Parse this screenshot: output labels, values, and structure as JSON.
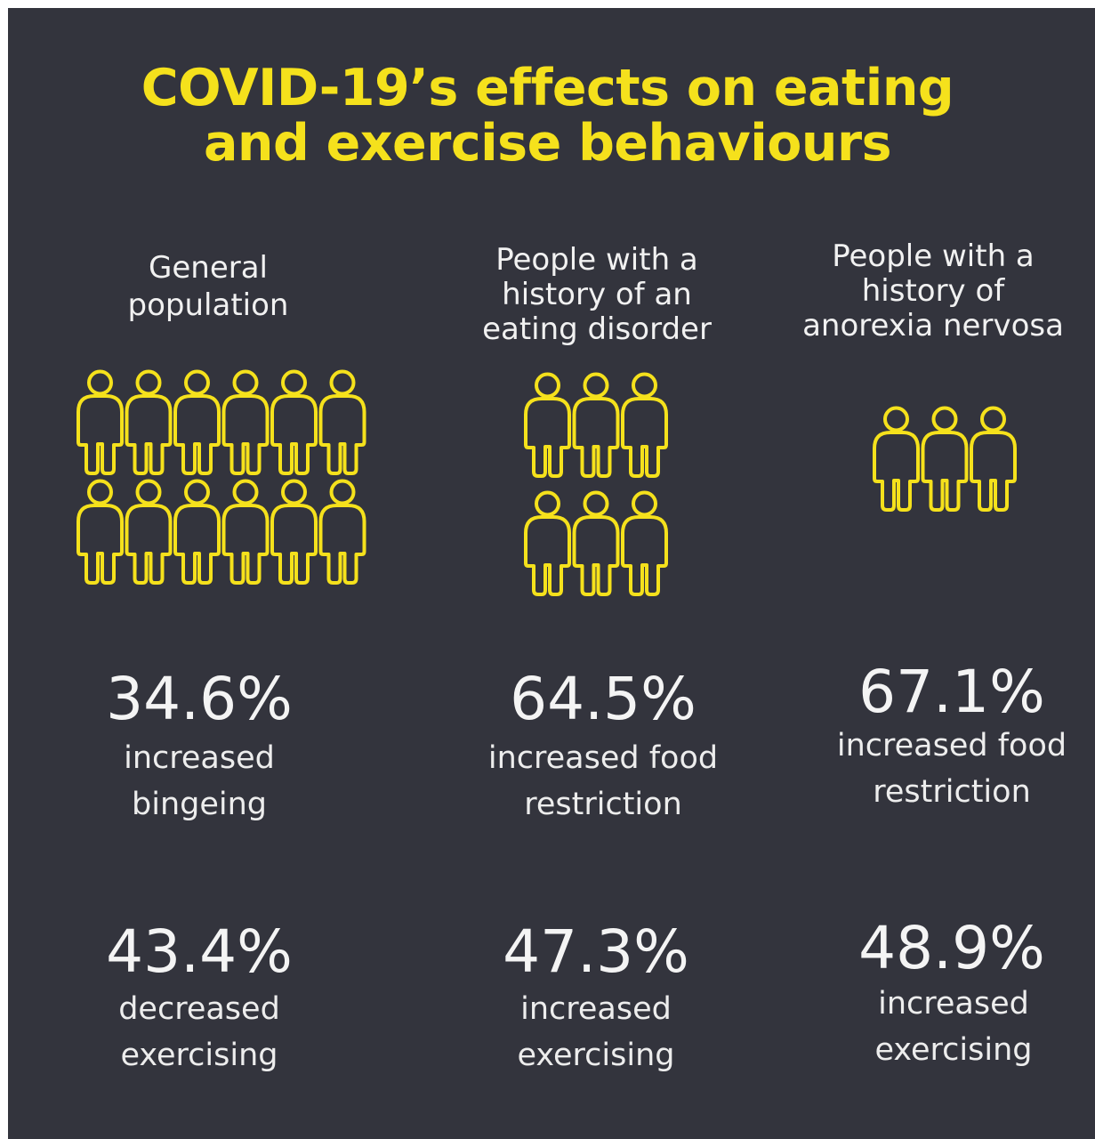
{
  "title": {
    "line1": "COVID-19’s effects on eating",
    "line2": "and exercise behaviours"
  },
  "colors": {
    "background": "#33343d",
    "accent": "#f5e11c",
    "text": "#f1f1f1"
  },
  "icon": "person-outline-icon",
  "groups": [
    {
      "label_lines": [
        "General",
        "population"
      ],
      "people_count": 12,
      "stats": [
        {
          "value": "34.6%",
          "desc_lines": [
            "increased",
            "bingeing"
          ]
        },
        {
          "value": "43.4%",
          "desc_lines": [
            "decreased",
            "exercising"
          ]
        }
      ]
    },
    {
      "label_lines": [
        "People with a",
        "history of an",
        "eating disorder"
      ],
      "people_count": 6,
      "stats": [
        {
          "value": "64.5%",
          "desc_lines": [
            "increased food",
            "restriction"
          ]
        },
        {
          "value": "47.3%",
          "desc_lines": [
            "increased",
            "exercising"
          ]
        }
      ]
    },
    {
      "label_lines": [
        "People with a",
        "history of",
        "anorexia nervosa"
      ],
      "people_count": 3,
      "stats": [
        {
          "value": "67.1%",
          "desc_lines": [
            "increased food",
            "restriction"
          ]
        },
        {
          "value": "48.9%",
          "desc_lines": [
            "increased",
            "exercising"
          ]
        }
      ]
    }
  ]
}
